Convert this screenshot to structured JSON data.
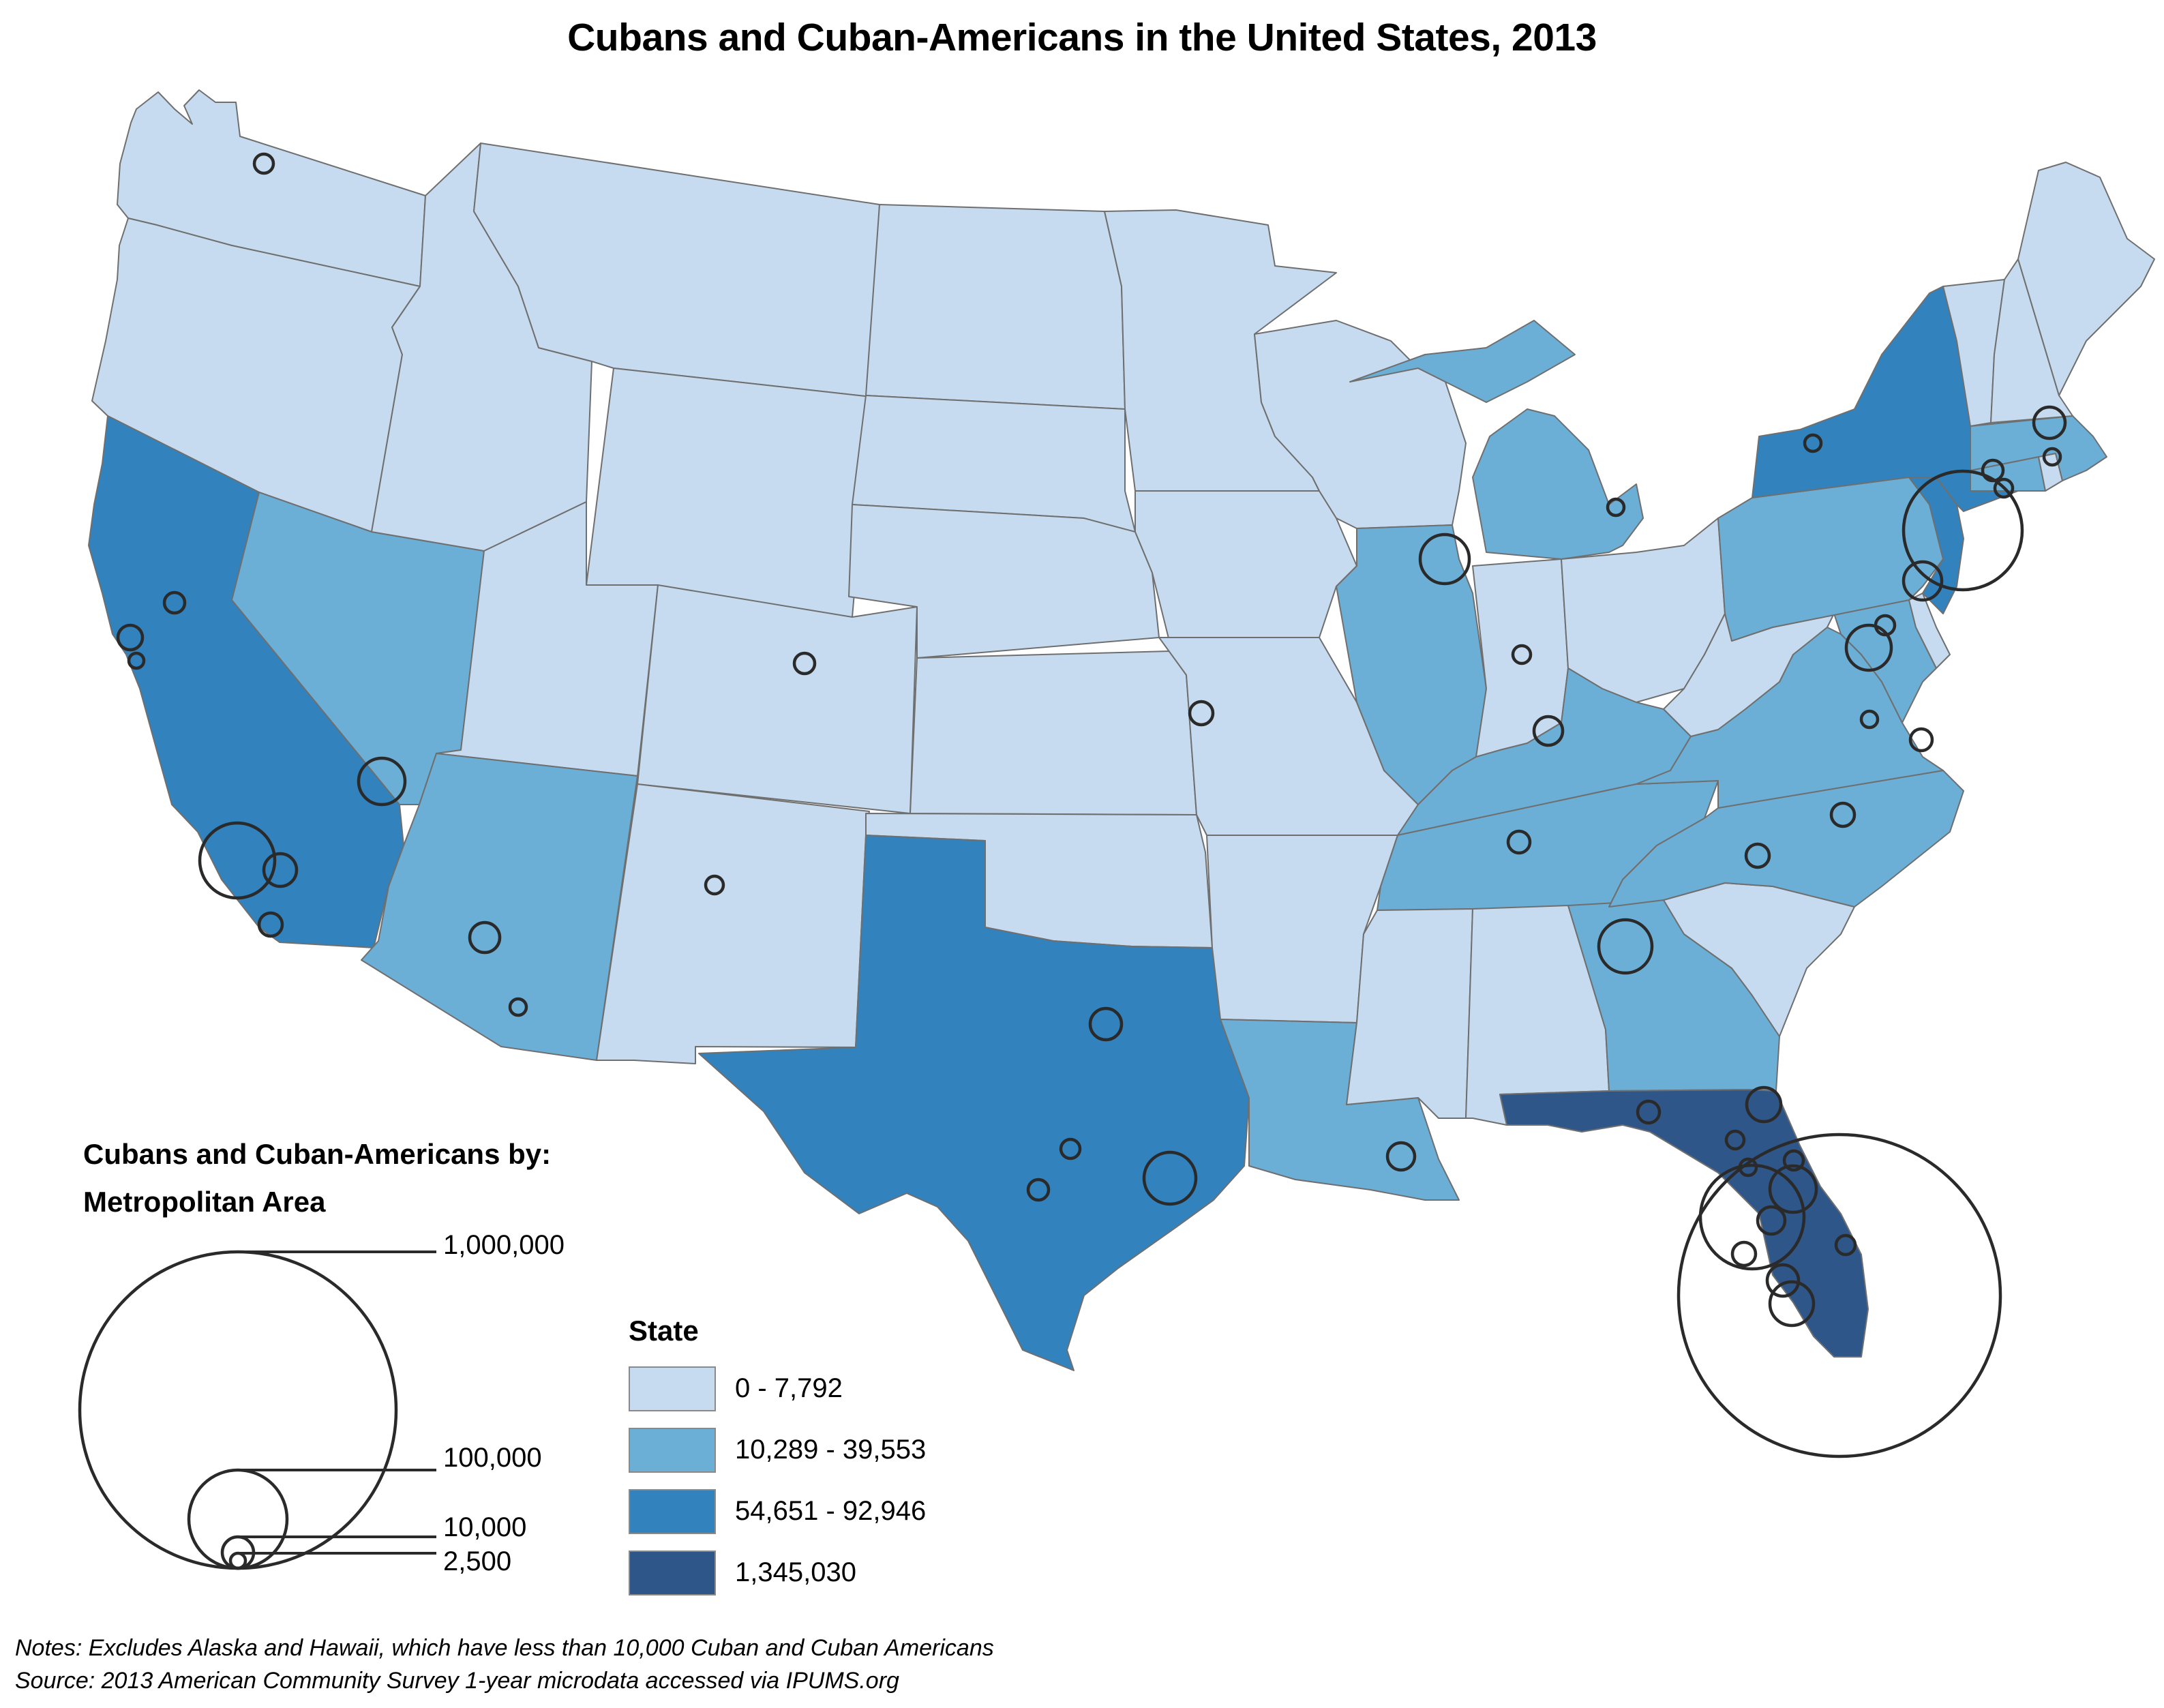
{
  "title": "Cubans and Cuban-Americans in the United States, 2013",
  "colors": {
    "class1": "#c6dbef",
    "class2": "#6baed6",
    "class3": "#3182bd",
    "class4": "#2f5688"
  },
  "bubble_legend": {
    "title_line1": "Cubans and  Cuban-Americans by:",
    "title_line2": "Metropolitan Area",
    "values": [
      {
        "label": "1,000,000",
        "value": 1000000
      },
      {
        "label": "100,000",
        "value": 100000
      },
      {
        "label": "10,000",
        "value": 10000
      },
      {
        "label": "2,500",
        "value": 2500
      }
    ]
  },
  "state_legend": {
    "title": "State",
    "classes": [
      {
        "label": "0 - 7,792",
        "color": "#c6dbef"
      },
      {
        "label": "10,289 - 39,553",
        "color": "#6baed6"
      },
      {
        "label": "54,651 - 92,946",
        "color": "#3182bd"
      },
      {
        "label": "1,345,030",
        "color": "#2f5688"
      }
    ]
  },
  "states": [
    {
      "name": "Washington",
      "class": 1
    },
    {
      "name": "Oregon",
      "class": 1
    },
    {
      "name": "California",
      "class": 3
    },
    {
      "name": "Nevada",
      "class": 2
    },
    {
      "name": "Idaho",
      "class": 1
    },
    {
      "name": "Montana",
      "class": 1
    },
    {
      "name": "Wyoming",
      "class": 1
    },
    {
      "name": "Utah",
      "class": 1
    },
    {
      "name": "Arizona",
      "class": 2
    },
    {
      "name": "Colorado",
      "class": 1
    },
    {
      "name": "New Mexico",
      "class": 1
    },
    {
      "name": "North Dakota",
      "class": 1
    },
    {
      "name": "South Dakota",
      "class": 1
    },
    {
      "name": "Nebraska",
      "class": 1
    },
    {
      "name": "Kansas",
      "class": 1
    },
    {
      "name": "Oklahoma",
      "class": 1
    },
    {
      "name": "Texas",
      "class": 3
    },
    {
      "name": "Minnesota",
      "class": 1
    },
    {
      "name": "Iowa",
      "class": 1
    },
    {
      "name": "Missouri",
      "class": 1
    },
    {
      "name": "Arkansas",
      "class": 1
    },
    {
      "name": "Louisiana",
      "class": 2
    },
    {
      "name": "Wisconsin",
      "class": 1
    },
    {
      "name": "Illinois",
      "class": 2
    },
    {
      "name": "Michigan",
      "class": 2
    },
    {
      "name": "Indiana",
      "class": 1
    },
    {
      "name": "Ohio",
      "class": 1
    },
    {
      "name": "Kentucky",
      "class": 2
    },
    {
      "name": "Tennessee",
      "class": 2
    },
    {
      "name": "Mississippi",
      "class": 1
    },
    {
      "name": "Alabama",
      "class": 1
    },
    {
      "name": "Georgia",
      "class": 2
    },
    {
      "name": "Florida",
      "class": 4
    },
    {
      "name": "South Carolina",
      "class": 1
    },
    {
      "name": "North Carolina",
      "class": 2
    },
    {
      "name": "Virginia",
      "class": 2
    },
    {
      "name": "West Virginia",
      "class": 1
    },
    {
      "name": "Maryland",
      "class": 2
    },
    {
      "name": "Delaware",
      "class": 1
    },
    {
      "name": "Pennsylvania",
      "class": 2
    },
    {
      "name": "New Jersey",
      "class": 3
    },
    {
      "name": "New York",
      "class": 3
    },
    {
      "name": "Connecticut",
      "class": 2
    },
    {
      "name": "Rhode Island",
      "class": 1
    },
    {
      "name": "Massachusetts",
      "class": 2
    },
    {
      "name": "Vermont",
      "class": 1
    },
    {
      "name": "New Hampshire",
      "class": 1
    },
    {
      "name": "Maine",
      "class": 1
    }
  ],
  "notes": {
    "line1": "Notes: Excludes Alaska and Hawaii, which have less than 10,000 Cuban and Cuban Americans",
    "line2": "Source: 2013 American Community Survey 1-year microdata accessed via IPUMS.org"
  }
}
